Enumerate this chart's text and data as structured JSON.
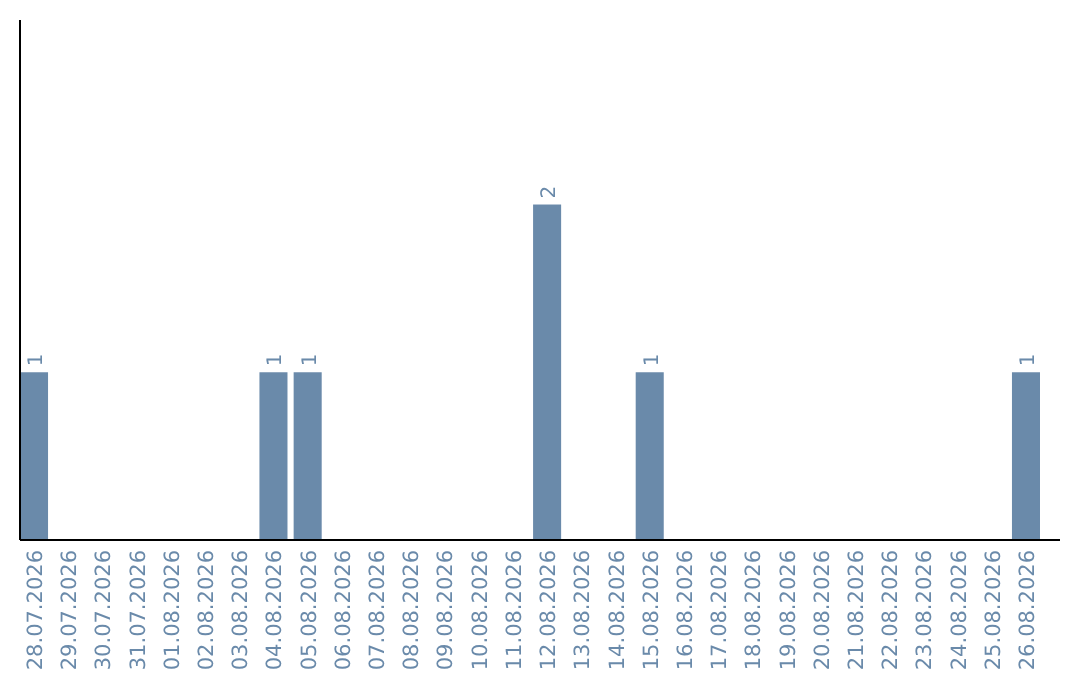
{
  "chart_data": {
    "type": "bar",
    "categories": [
      "28.07.2026",
      "29.07.2026",
      "30.07.2026",
      "31.07.2026",
      "01.08.2026",
      "02.08.2026",
      "03.08.2026",
      "04.08.2026",
      "05.08.2026",
      "06.08.2026",
      "07.08.2026",
      "08.08.2026",
      "09.08.2026",
      "10.08.2026",
      "11.08.2026",
      "12.08.2026",
      "13.08.2026",
      "14.08.2026",
      "15.08.2026",
      "16.08.2026",
      "17.08.2026",
      "18.08.2026",
      "19.08.2026",
      "20.08.2026",
      "21.08.2026",
      "22.08.2026",
      "23.08.2026",
      "24.08.2026",
      "25.08.2026",
      "26.08.2026"
    ],
    "values": [
      1,
      0,
      0,
      0,
      0,
      0,
      0,
      1,
      1,
      0,
      0,
      0,
      0,
      0,
      0,
      2,
      0,
      0,
      1,
      0,
      0,
      0,
      0,
      0,
      0,
      0,
      0,
      0,
      0,
      1
    ],
    "value_labels": [
      "1",
      null,
      null,
      null,
      null,
      null,
      null,
      "1",
      "1",
      null,
      null,
      null,
      null,
      null,
      null,
      "2",
      null,
      null,
      "1",
      null,
      null,
      null,
      null,
      null,
      null,
      null,
      null,
      null,
      null,
      "1"
    ],
    "color": "#6a8aaa",
    "tick_labels": "x"
  }
}
